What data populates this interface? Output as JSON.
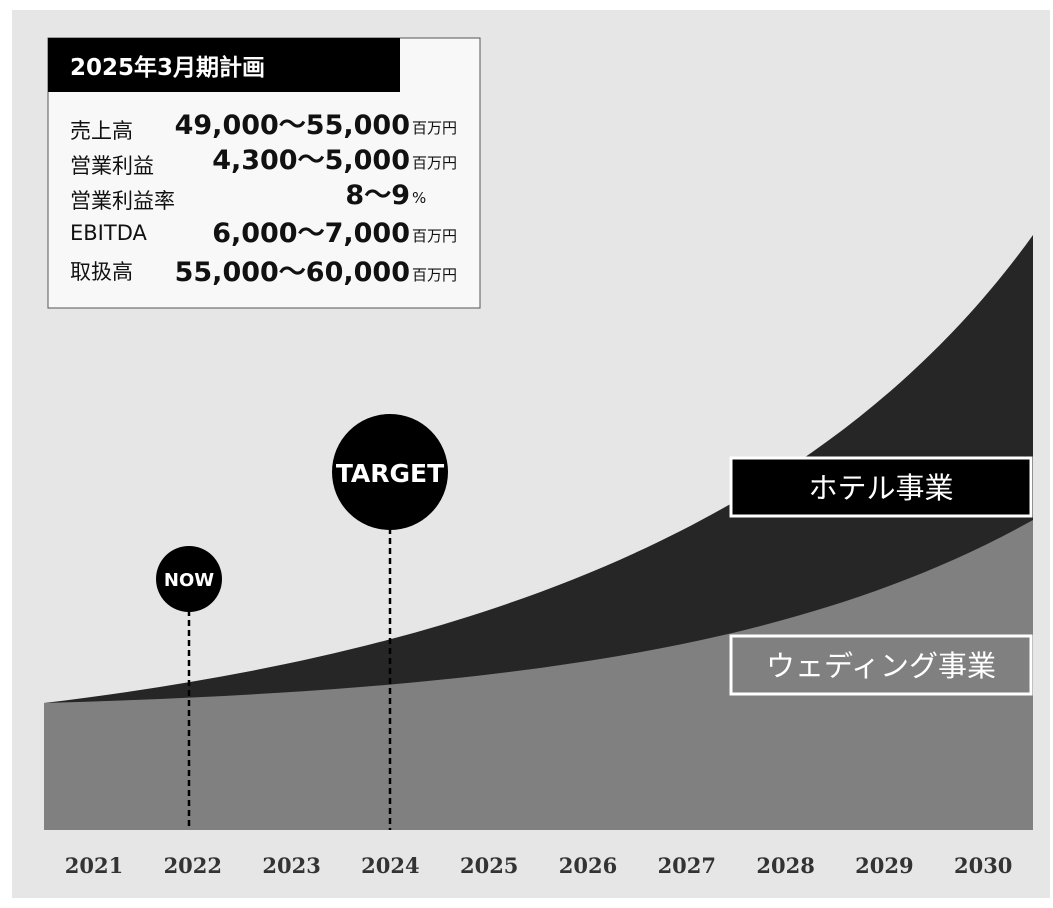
{
  "plan": {
    "title": "2025年3月期計画",
    "rows": [
      {
        "label": "売上高",
        "value": "49,000〜55,000",
        "unit": "百万円"
      },
      {
        "label": "営業利益",
        "value": "4,300〜5,000",
        "unit": "百万円"
      },
      {
        "label": "営業利益率",
        "value": "8〜9",
        "unit": "%"
      },
      {
        "label": "EBITDA",
        "value": "6,000〜7,000",
        "unit": "百万円"
      },
      {
        "label": "取扱高",
        "value": "55,000〜60,000",
        "unit": "百万円"
      }
    ]
  },
  "markers": {
    "now": "NOW",
    "target": "TARGET"
  },
  "segments": {
    "hotel": "ホテル事業",
    "wedding": "ウェディング事業"
  },
  "years": [
    "2021",
    "2022",
    "2023",
    "2024",
    "2025",
    "2026",
    "2027",
    "2028",
    "2029",
    "2030"
  ]
}
